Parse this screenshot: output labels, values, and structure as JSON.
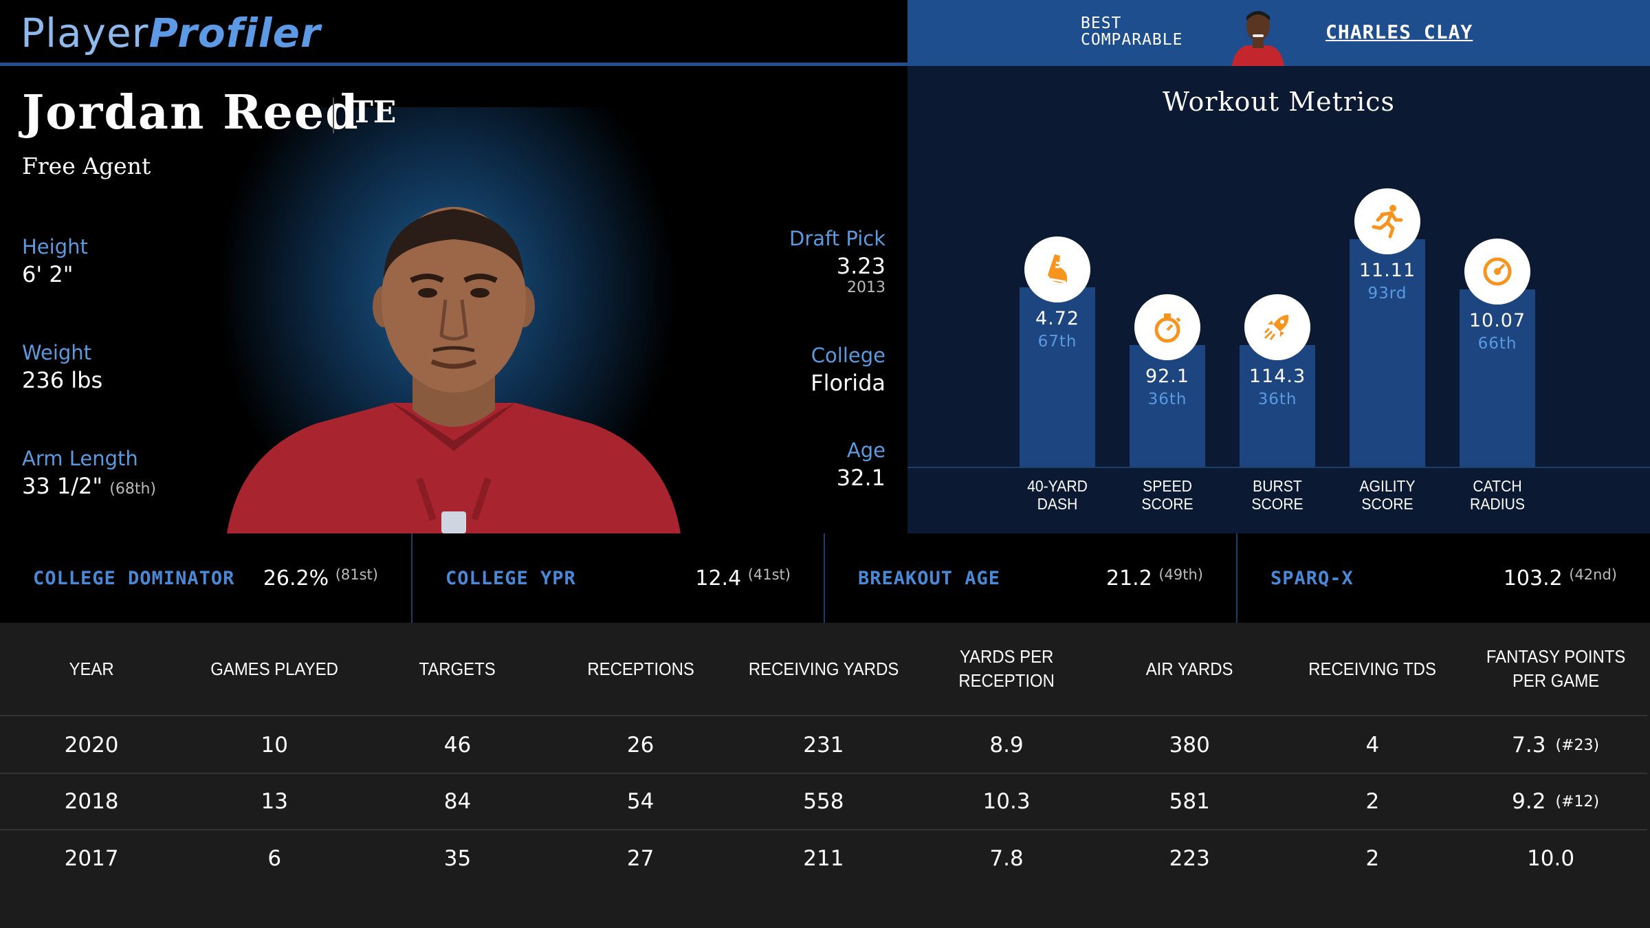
{
  "header": {
    "logo_part1": "Player",
    "logo_part2": "Profiler",
    "comparable_label_line1": "BEST",
    "comparable_label_line2": "COMPARABLE",
    "comparable_name": "CHARLES CLAY"
  },
  "player": {
    "name": "Jordan Reed",
    "position": "TE",
    "team": "Free Agent",
    "left_stats": [
      {
        "label": "Height",
        "value": "6' 2\"",
        "sub": ""
      },
      {
        "label": "Weight",
        "value": "236 lbs",
        "sub": ""
      },
      {
        "label": "Arm Length",
        "value": "33 1/2\"",
        "sub": "(68th)"
      }
    ],
    "right_stats": [
      {
        "label": "Draft Pick",
        "value": "3.23",
        "sub": "2013"
      },
      {
        "label": "College",
        "value": "Florida",
        "sub": ""
      },
      {
        "label": "Age",
        "value": "32.1",
        "sub": ""
      }
    ]
  },
  "workout": {
    "title": "Workout Metrics",
    "metrics": [
      {
        "label_line1": "40-YARD",
        "label_line2": "DASH",
        "value": "4.72",
        "percentile": "67th",
        "percentile_num": 67,
        "icon": "shoe-icon"
      },
      {
        "label_line1": "SPEED",
        "label_line2": "SCORE",
        "value": "92.1",
        "percentile": "36th",
        "percentile_num": 36,
        "icon": "stopwatch-icon"
      },
      {
        "label_line1": "BURST",
        "label_line2": "SCORE",
        "value": "114.3",
        "percentile": "36th",
        "percentile_num": 36,
        "icon": "rocket-icon"
      },
      {
        "label_line1": "AGILITY",
        "label_line2": "SCORE",
        "value": "11.11",
        "percentile": "93rd",
        "percentile_num": 93,
        "icon": "runner-icon"
      },
      {
        "label_line1": "CATCH",
        "label_line2": "RADIUS",
        "value": "10.07",
        "percentile": "66th",
        "percentile_num": 66,
        "icon": "target-icon"
      }
    ],
    "colors": {
      "bar": "#1d4680",
      "icon": "#f7941d",
      "percentile": "#5a9ae0"
    }
  },
  "college_metrics": [
    {
      "label": "COLLEGE DOMINATOR",
      "value": "26.2%",
      "percentile": "(81st)"
    },
    {
      "label": "COLLEGE YPR",
      "value": "12.4",
      "percentile": "(41st)"
    },
    {
      "label": "BREAKOUT AGE",
      "value": "21.2",
      "percentile": "(49th)"
    },
    {
      "label": "SPARQ-X",
      "value": "103.2",
      "percentile": "(42nd)"
    }
  ],
  "stats_table": {
    "columns": [
      "YEAR",
      "GAMES PLAYED",
      "TARGETS",
      "RECEPTIONS",
      "RECEIVING YARDS",
      "YARDS PER RECEPTION",
      "AIR YARDS",
      "RECEIVING TDS",
      "FANTASY POINTS PER GAME"
    ],
    "rows": [
      {
        "year": "2020",
        "games": "10",
        "targets": "46",
        "receptions": "26",
        "yards": "231",
        "ypr": "8.9",
        "air_yards": "380",
        "tds": "4",
        "fppg": "7.3",
        "rank": "(#23)"
      },
      {
        "year": "2018",
        "games": "13",
        "targets": "84",
        "receptions": "54",
        "yards": "558",
        "ypr": "10.3",
        "air_yards": "581",
        "tds": "2",
        "fppg": "9.2",
        "rank": "(#12)"
      },
      {
        "year": "2017",
        "games": "6",
        "targets": "35",
        "receptions": "27",
        "yards": "211",
        "ypr": "7.8",
        "air_yards": "223",
        "tds": "2",
        "fppg": "10.0",
        "rank": ""
      }
    ]
  }
}
